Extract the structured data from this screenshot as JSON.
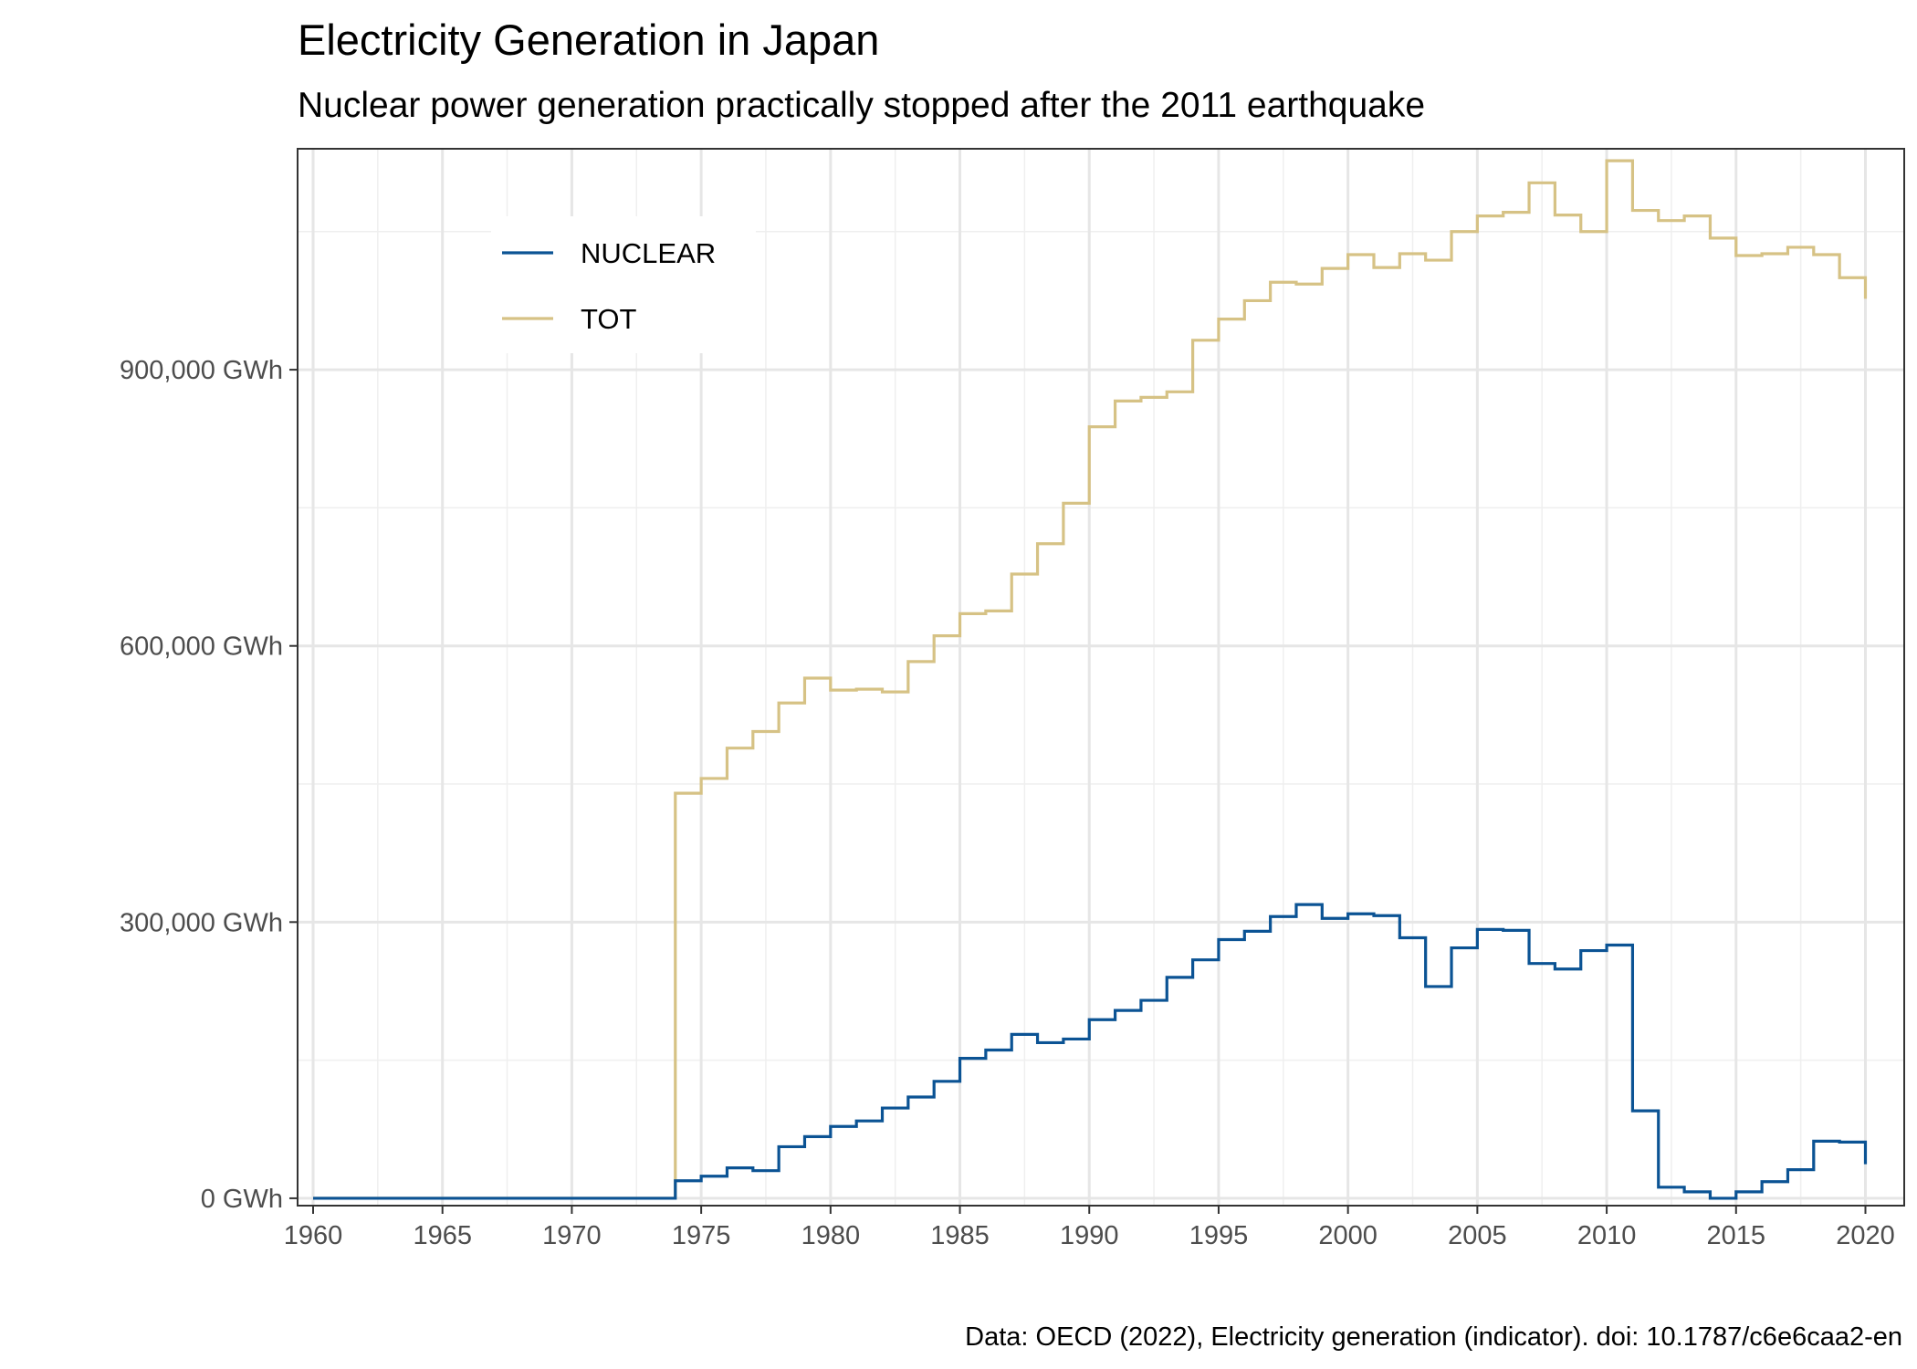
{
  "chart_data": {
    "type": "line",
    "title": "Electricity Generation in Japan",
    "subtitle": "Nuclear power generation practically stopped after the 2011 earthquake",
    "caption": "Data: OECD (2022), Electricity generation (indicator). doi: 10.1787/c6e6caa2-en",
    "xlabel": "",
    "ylabel": "",
    "step": true,
    "xlim": [
      1959.4,
      2021.5
    ],
    "ylim": [
      -8000,
      1140000
    ],
    "x_ticks": [
      1960,
      1965,
      1970,
      1975,
      1980,
      1985,
      1990,
      1995,
      2000,
      2005,
      2010,
      2015,
      2020
    ],
    "x_tick_labels": [
      "1960",
      "1965",
      "1970",
      "1975",
      "1980",
      "1985",
      "1990",
      "1995",
      "2000",
      "2005",
      "2010",
      "2015",
      "2020"
    ],
    "y_ticks": [
      0,
      300000,
      600000,
      900000
    ],
    "y_tick_labels": [
      "0 GWh",
      "300,000 GWh",
      "600,000 GWh",
      "900,000 GWh"
    ],
    "grid": true,
    "legend_position": "top-left",
    "x": [
      1960,
      1961,
      1962,
      1963,
      1964,
      1965,
      1966,
      1967,
      1968,
      1969,
      1970,
      1971,
      1972,
      1973,
      1974,
      1975,
      1976,
      1977,
      1978,
      1979,
      1980,
      1981,
      1982,
      1983,
      1984,
      1985,
      1986,
      1987,
      1988,
      1989,
      1990,
      1991,
      1992,
      1993,
      1994,
      1995,
      1996,
      1997,
      1998,
      1999,
      2000,
      2001,
      2002,
      2003,
      2004,
      2005,
      2006,
      2007,
      2008,
      2009,
      2010,
      2011,
      2012,
      2013,
      2014,
      2015,
      2016,
      2017,
      2018,
      2019,
      2020
    ],
    "series": [
      {
        "name": "NUCLEAR",
        "color": "#0b5394",
        "values": [
          0,
          0,
          0,
          0,
          0,
          0,
          0,
          0,
          0,
          0,
          0,
          0,
          0,
          0,
          19000,
          24000,
          33000,
          30000,
          56000,
          67000,
          78000,
          84000,
          98000,
          110000,
          127000,
          152000,
          161000,
          178000,
          169000,
          173000,
          194000,
          204000,
          215000,
          240000,
          259000,
          281000,
          290000,
          306000,
          319000,
          304000,
          309000,
          307000,
          283000,
          230000,
          272000,
          292000,
          291000,
          255000,
          249000,
          269000,
          275000,
          95000,
          12000,
          7000,
          0,
          7000,
          18000,
          31000,
          62000,
          61000,
          37000
        ]
      },
      {
        "name": "TOT",
        "color": "#d6c285",
        "values": [
          0,
          0,
          0,
          0,
          0,
          0,
          0,
          0,
          0,
          0,
          0,
          0,
          0,
          0,
          440000,
          456000,
          489000,
          507000,
          538000,
          565000,
          552000,
          553000,
          550000,
          583000,
          611000,
          635000,
          638000,
          678000,
          711000,
          755000,
          838000,
          866000,
          870000,
          876000,
          932000,
          955000,
          975000,
          995000,
          993000,
          1010000,
          1025000,
          1011000,
          1026000,
          1019000,
          1050000,
          1067000,
          1071000,
          1103000,
          1068000,
          1050000,
          1127000,
          1073000,
          1062000,
          1067000,
          1043000,
          1024000,
          1026000,
          1033000,
          1025000,
          1000000,
          977000
        ]
      }
    ]
  }
}
